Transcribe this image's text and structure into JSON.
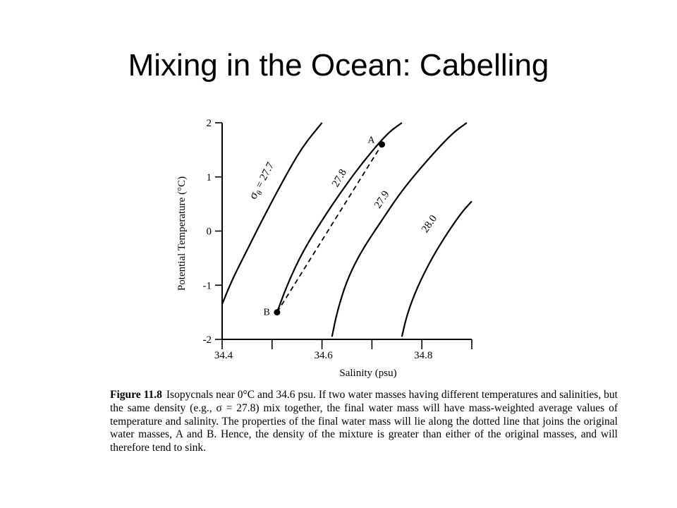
{
  "slide": {
    "title": "Mixing in the Ocean: Cabelling"
  },
  "chart_data": {
    "type": "line",
    "xlabel": "Salinity (psu)",
    "ylabel": "Potential Temperature (°C)",
    "xlim": [
      34.4,
      34.9
    ],
    "ylim": [
      -2,
      2
    ],
    "x_ticks": [
      34.4,
      34.5,
      34.6,
      34.7,
      34.8,
      34.9
    ],
    "x_tick_labels": [
      "34.4",
      "",
      "34.6",
      "",
      "34.8",
      ""
    ],
    "y_ticks": [
      2,
      1,
      0,
      -1,
      -2
    ],
    "y_tick_labels": [
      "2",
      "1",
      "0",
      "-1",
      "-2"
    ],
    "grid": false,
    "series": [
      {
        "name": "σθ = 27.7",
        "label_prefix": "σ",
        "label_sub": "θ",
        "label_value": " = 27.7",
        "points": [
          [
            34.4,
            -1.35
          ],
          [
            34.42,
            -0.9
          ],
          [
            34.45,
            -0.35
          ],
          [
            34.48,
            0.2
          ],
          [
            34.52,
            0.9
          ],
          [
            34.56,
            1.55
          ],
          [
            34.6,
            2.0
          ]
        ]
      },
      {
        "name": "27.8",
        "label_prefix": "",
        "label_sub": "",
        "label_value": "27.8",
        "points": [
          [
            34.51,
            -1.5
          ],
          [
            34.53,
            -1.0
          ],
          [
            34.56,
            -0.4
          ],
          [
            34.6,
            0.2
          ],
          [
            34.64,
            0.75
          ],
          [
            34.68,
            1.25
          ],
          [
            34.73,
            1.8
          ],
          [
            34.76,
            2.0
          ]
        ]
      },
      {
        "name": "27.9",
        "label_prefix": "",
        "label_sub": "",
        "label_value": "27.9",
        "points": [
          [
            34.62,
            -1.95
          ],
          [
            34.63,
            -1.5
          ],
          [
            34.65,
            -0.9
          ],
          [
            34.68,
            -0.35
          ],
          [
            34.72,
            0.2
          ],
          [
            34.76,
            0.75
          ],
          [
            34.81,
            1.3
          ],
          [
            34.86,
            1.8
          ],
          [
            34.89,
            2.0
          ]
        ]
      },
      {
        "name": "28.0",
        "label_prefix": "",
        "label_sub": "",
        "label_value": "28.0",
        "points": [
          [
            34.76,
            -1.95
          ],
          [
            34.77,
            -1.55
          ],
          [
            34.79,
            -1.05
          ],
          [
            34.82,
            -0.5
          ],
          [
            34.85,
            -0.05
          ],
          [
            34.88,
            0.35
          ],
          [
            34.9,
            0.55
          ]
        ]
      }
    ],
    "mixing_line": {
      "from": "B",
      "to": "A",
      "style": "dashed"
    },
    "points": [
      {
        "name": "A",
        "x": 34.72,
        "y": 1.6
      },
      {
        "name": "B",
        "x": 34.51,
        "y": -1.5
      }
    ]
  },
  "caption": {
    "label": "Figure 11.8",
    "text": "Isopycnals near 0°C and 34.6 psu. If two water masses having different temperatures and salinities, but the same density (e.g., σ = 27.8) mix together, the final water mass will have mass-weighted average values of temperature and salinity. The properties of the final water mass will lie along the dotted line that joins the original water masses, A and B. Hence, the density of the mixture is greater than either of the original masses, and will therefore tend to sink."
  }
}
